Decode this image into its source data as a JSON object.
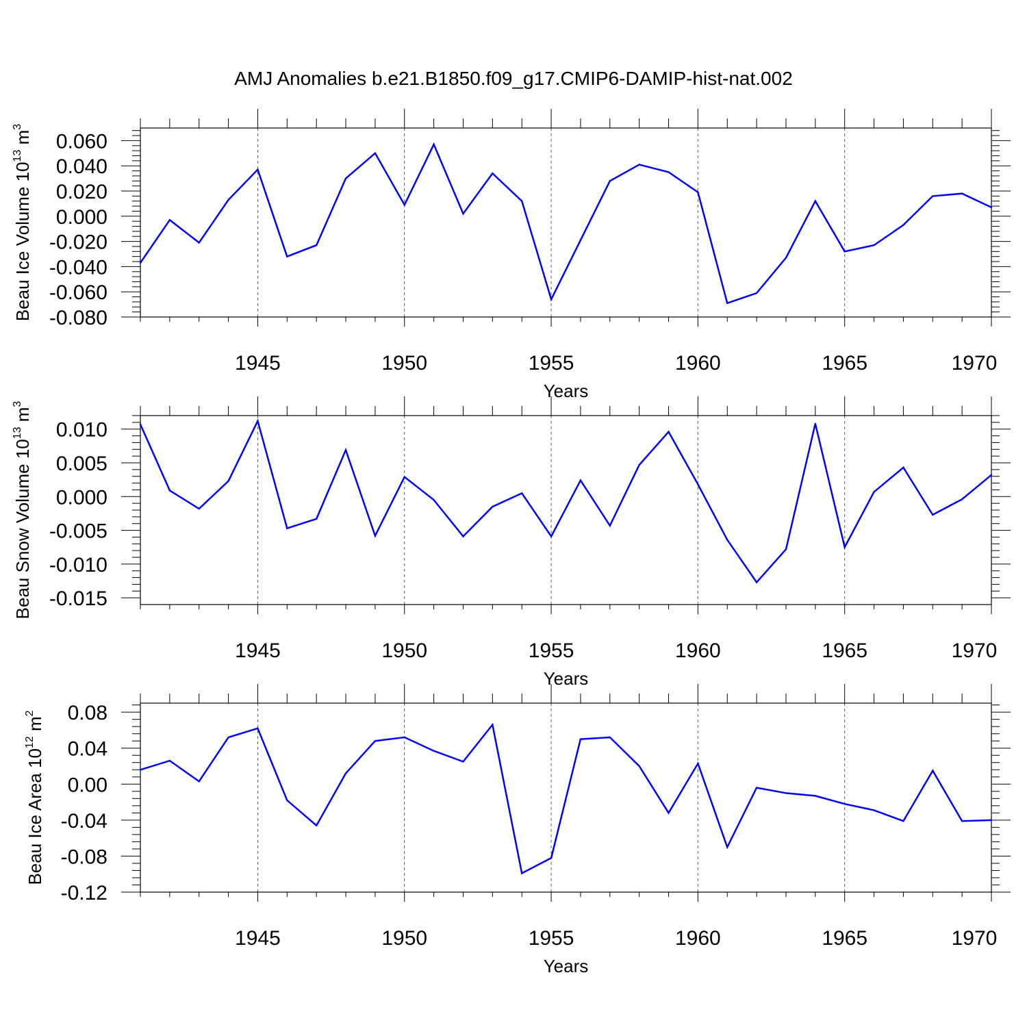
{
  "title": "AMJ Anomalies b.e21.B1850.f09_g17.CMIP6-DAMIP-hist-nat.002",
  "line_color": "#0000ff",
  "chart_data": [
    {
      "type": "line",
      "ylabel_base": "Beau Ice Volume 10",
      "ylabel_exp": "13",
      "ylabel_unit": " m",
      "ylabel_unit_exp": "3",
      "xlabel": "Years",
      "xlim": [
        1941,
        1970
      ],
      "ylim": [
        -0.08,
        0.07
      ],
      "yticks": [
        -0.08,
        -0.06,
        -0.04,
        -0.02,
        0.0,
        0.02,
        0.04,
        0.06
      ],
      "ytick_labels": [
        "-0.080",
        "-0.060",
        "-0.040",
        "-0.020",
        "0.000",
        "0.020",
        "0.040",
        "0.060"
      ],
      "xticks": [
        1945,
        1950,
        1955,
        1960,
        1965,
        1970
      ],
      "xtick_labels": [
        "1945",
        "1950",
        "1955",
        "1960",
        "1965",
        "1970"
      ],
      "x": [
        1941,
        1942,
        1943,
        1944,
        1945,
        1946,
        1947,
        1948,
        1949,
        1950,
        1951,
        1952,
        1953,
        1954,
        1955,
        1956,
        1957,
        1958,
        1959,
        1960,
        1961,
        1962,
        1963,
        1964,
        1965,
        1966,
        1967,
        1968,
        1969,
        1970
      ],
      "values": [
        -0.037,
        -0.003,
        -0.021,
        0.013,
        0.037,
        -0.032,
        -0.023,
        0.03,
        0.05,
        0.009,
        0.057,
        0.002,
        0.034,
        0.012,
        -0.066,
        -0.019,
        0.028,
        0.041,
        0.035,
        0.019,
        -0.069,
        -0.061,
        -0.033,
        0.012,
        -0.028,
        -0.023,
        -0.007,
        0.016,
        0.018,
        0.007
      ]
    },
    {
      "type": "line",
      "ylabel_base": "Beau Snow Volume 10",
      "ylabel_exp": "13",
      "ylabel_unit": " m",
      "ylabel_unit_exp": "3",
      "xlabel": "Years",
      "xlim": [
        1941,
        1970
      ],
      "ylim": [
        -0.016,
        0.012
      ],
      "yticks": [
        -0.015,
        -0.01,
        -0.005,
        0.0,
        0.005,
        0.01
      ],
      "ytick_labels": [
        "-0.015",
        "-0.010",
        "-0.005",
        "0.000",
        "0.005",
        "0.010"
      ],
      "xticks": [
        1945,
        1950,
        1955,
        1960,
        1965,
        1970
      ],
      "xtick_labels": [
        "1945",
        "1950",
        "1955",
        "1960",
        "1965",
        "1970"
      ],
      "x": [
        1941,
        1942,
        1943,
        1944,
        1945,
        1946,
        1947,
        1948,
        1949,
        1950,
        1951,
        1952,
        1953,
        1954,
        1955,
        1956,
        1957,
        1958,
        1959,
        1960,
        1961,
        1962,
        1963,
        1964,
        1965,
        1966,
        1967,
        1968,
        1969,
        1970
      ],
      "values": [
        0.0107,
        0.0009,
        -0.0018,
        0.0023,
        0.0112,
        -0.0047,
        -0.0033,
        0.0069,
        -0.0058,
        0.0029,
        -0.0005,
        -0.0059,
        -0.0015,
        0.0005,
        -0.0059,
        0.0024,
        -0.0043,
        0.0047,
        0.0096,
        0.0018,
        -0.0064,
        -0.0127,
        -0.0078,
        0.0108,
        -0.0075,
        0.0007,
        0.0043,
        -0.0027,
        -0.0004,
        0.0032
      ]
    },
    {
      "type": "line",
      "ylabel_base": "Beau Ice Area 10",
      "ylabel_exp": "12",
      "ylabel_unit": " m",
      "ylabel_unit_exp": "2",
      "xlabel": "Years",
      "xlim": [
        1941,
        1970
      ],
      "ylim": [
        -0.12,
        0.09
      ],
      "yticks": [
        -0.12,
        -0.08,
        -0.04,
        0.0,
        0.04,
        0.08
      ],
      "ytick_labels": [
        "-0.12",
        "-0.08",
        "-0.04",
        "0.00",
        "0.04",
        "0.08"
      ],
      "xticks": [
        1945,
        1950,
        1955,
        1960,
        1965,
        1970
      ],
      "xtick_labels": [
        "1945",
        "1950",
        "1955",
        "1960",
        "1965",
        "1970"
      ],
      "x": [
        1941,
        1942,
        1943,
        1944,
        1945,
        1946,
        1947,
        1948,
        1949,
        1950,
        1951,
        1952,
        1953,
        1954,
        1955,
        1956,
        1957,
        1958,
        1959,
        1960,
        1961,
        1962,
        1963,
        1964,
        1965,
        1966,
        1967,
        1968,
        1969,
        1970
      ],
      "values": [
        0.016,
        0.026,
        0.003,
        0.052,
        0.062,
        -0.018,
        -0.046,
        0.012,
        0.048,
        0.052,
        0.037,
        0.025,
        0.066,
        -0.099,
        -0.082,
        0.05,
        0.052,
        0.02,
        -0.032,
        0.023,
        -0.07,
        -0.004,
        -0.01,
        -0.013,
        -0.022,
        -0.029,
        -0.041,
        0.015,
        -0.041,
        -0.04
      ]
    }
  ]
}
